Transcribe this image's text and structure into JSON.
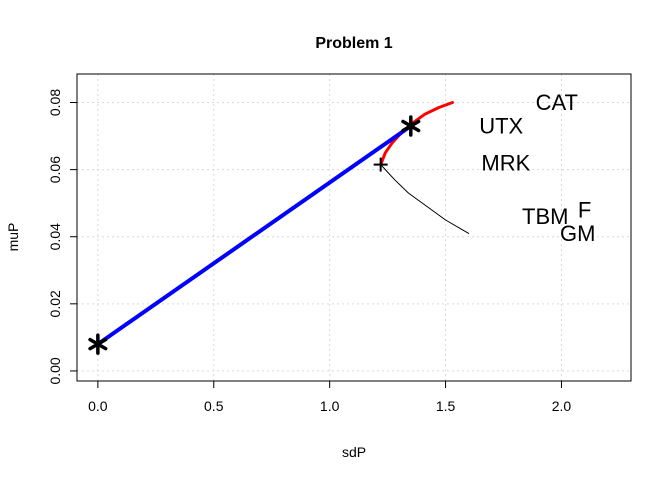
{
  "chart_data": {
    "type": "line",
    "title": "Problem 1",
    "xlabel": "sdP",
    "ylabel": "muP",
    "xlim": [
      -0.09,
      2.3
    ],
    "ylim": [
      -0.003,
      0.0885
    ],
    "xticks": [
      "0.0",
      "0.5",
      "1.0",
      "1.5",
      "2.0"
    ],
    "yticks": [
      "0.00",
      "0.02",
      "0.04",
      "0.06",
      "0.08"
    ],
    "grid": true,
    "colors": {
      "efficient_frontier": "#ff0000",
      "tangency_line": "#0000ff",
      "frontier": "#000000"
    },
    "series": [
      {
        "name": "",
        "kind": "frontier-inefficient",
        "points": [
          [
            1.6,
            0.041
          ],
          [
            1.5,
            0.045
          ],
          [
            1.42,
            0.049
          ],
          [
            1.34,
            0.053
          ],
          [
            1.28,
            0.057
          ],
          [
            1.24,
            0.06
          ],
          [
            1.22,
            0.0615
          ]
        ]
      },
      {
        "name": "",
        "kind": "frontier-efficient",
        "points": [
          [
            1.22,
            0.0615
          ],
          [
            1.24,
            0.065
          ],
          [
            1.27,
            0.068
          ],
          [
            1.31,
            0.071
          ],
          [
            1.36,
            0.074
          ],
          [
            1.41,
            0.0765
          ],
          [
            1.47,
            0.0785
          ],
          [
            1.53,
            0.08
          ]
        ]
      },
      {
        "name": "",
        "kind": "tangency-line",
        "points": [
          [
            0.0,
            0.008
          ],
          [
            1.35,
            0.073
          ]
        ]
      }
    ],
    "markers": [
      {
        "label": "*",
        "x": 0.0,
        "y": 0.008
      },
      {
        "label": "*",
        "x": 1.35,
        "y": 0.073
      },
      {
        "label": "+",
        "x": 1.22,
        "y": 0.0615
      }
    ],
    "annotations": [
      {
        "text": "CAT",
        "x": 1.98,
        "y": 0.0795
      },
      {
        "text": "UTX",
        "x": 1.74,
        "y": 0.0725
      },
      {
        "text": "MRK",
        "x": 1.76,
        "y": 0.0615
      },
      {
        "text": "TBM",
        "x": 1.93,
        "y": 0.0455
      },
      {
        "text": "F",
        "x": 2.1,
        "y": 0.0475
      },
      {
        "text": "GM",
        "x": 2.07,
        "y": 0.0405
      }
    ]
  }
}
